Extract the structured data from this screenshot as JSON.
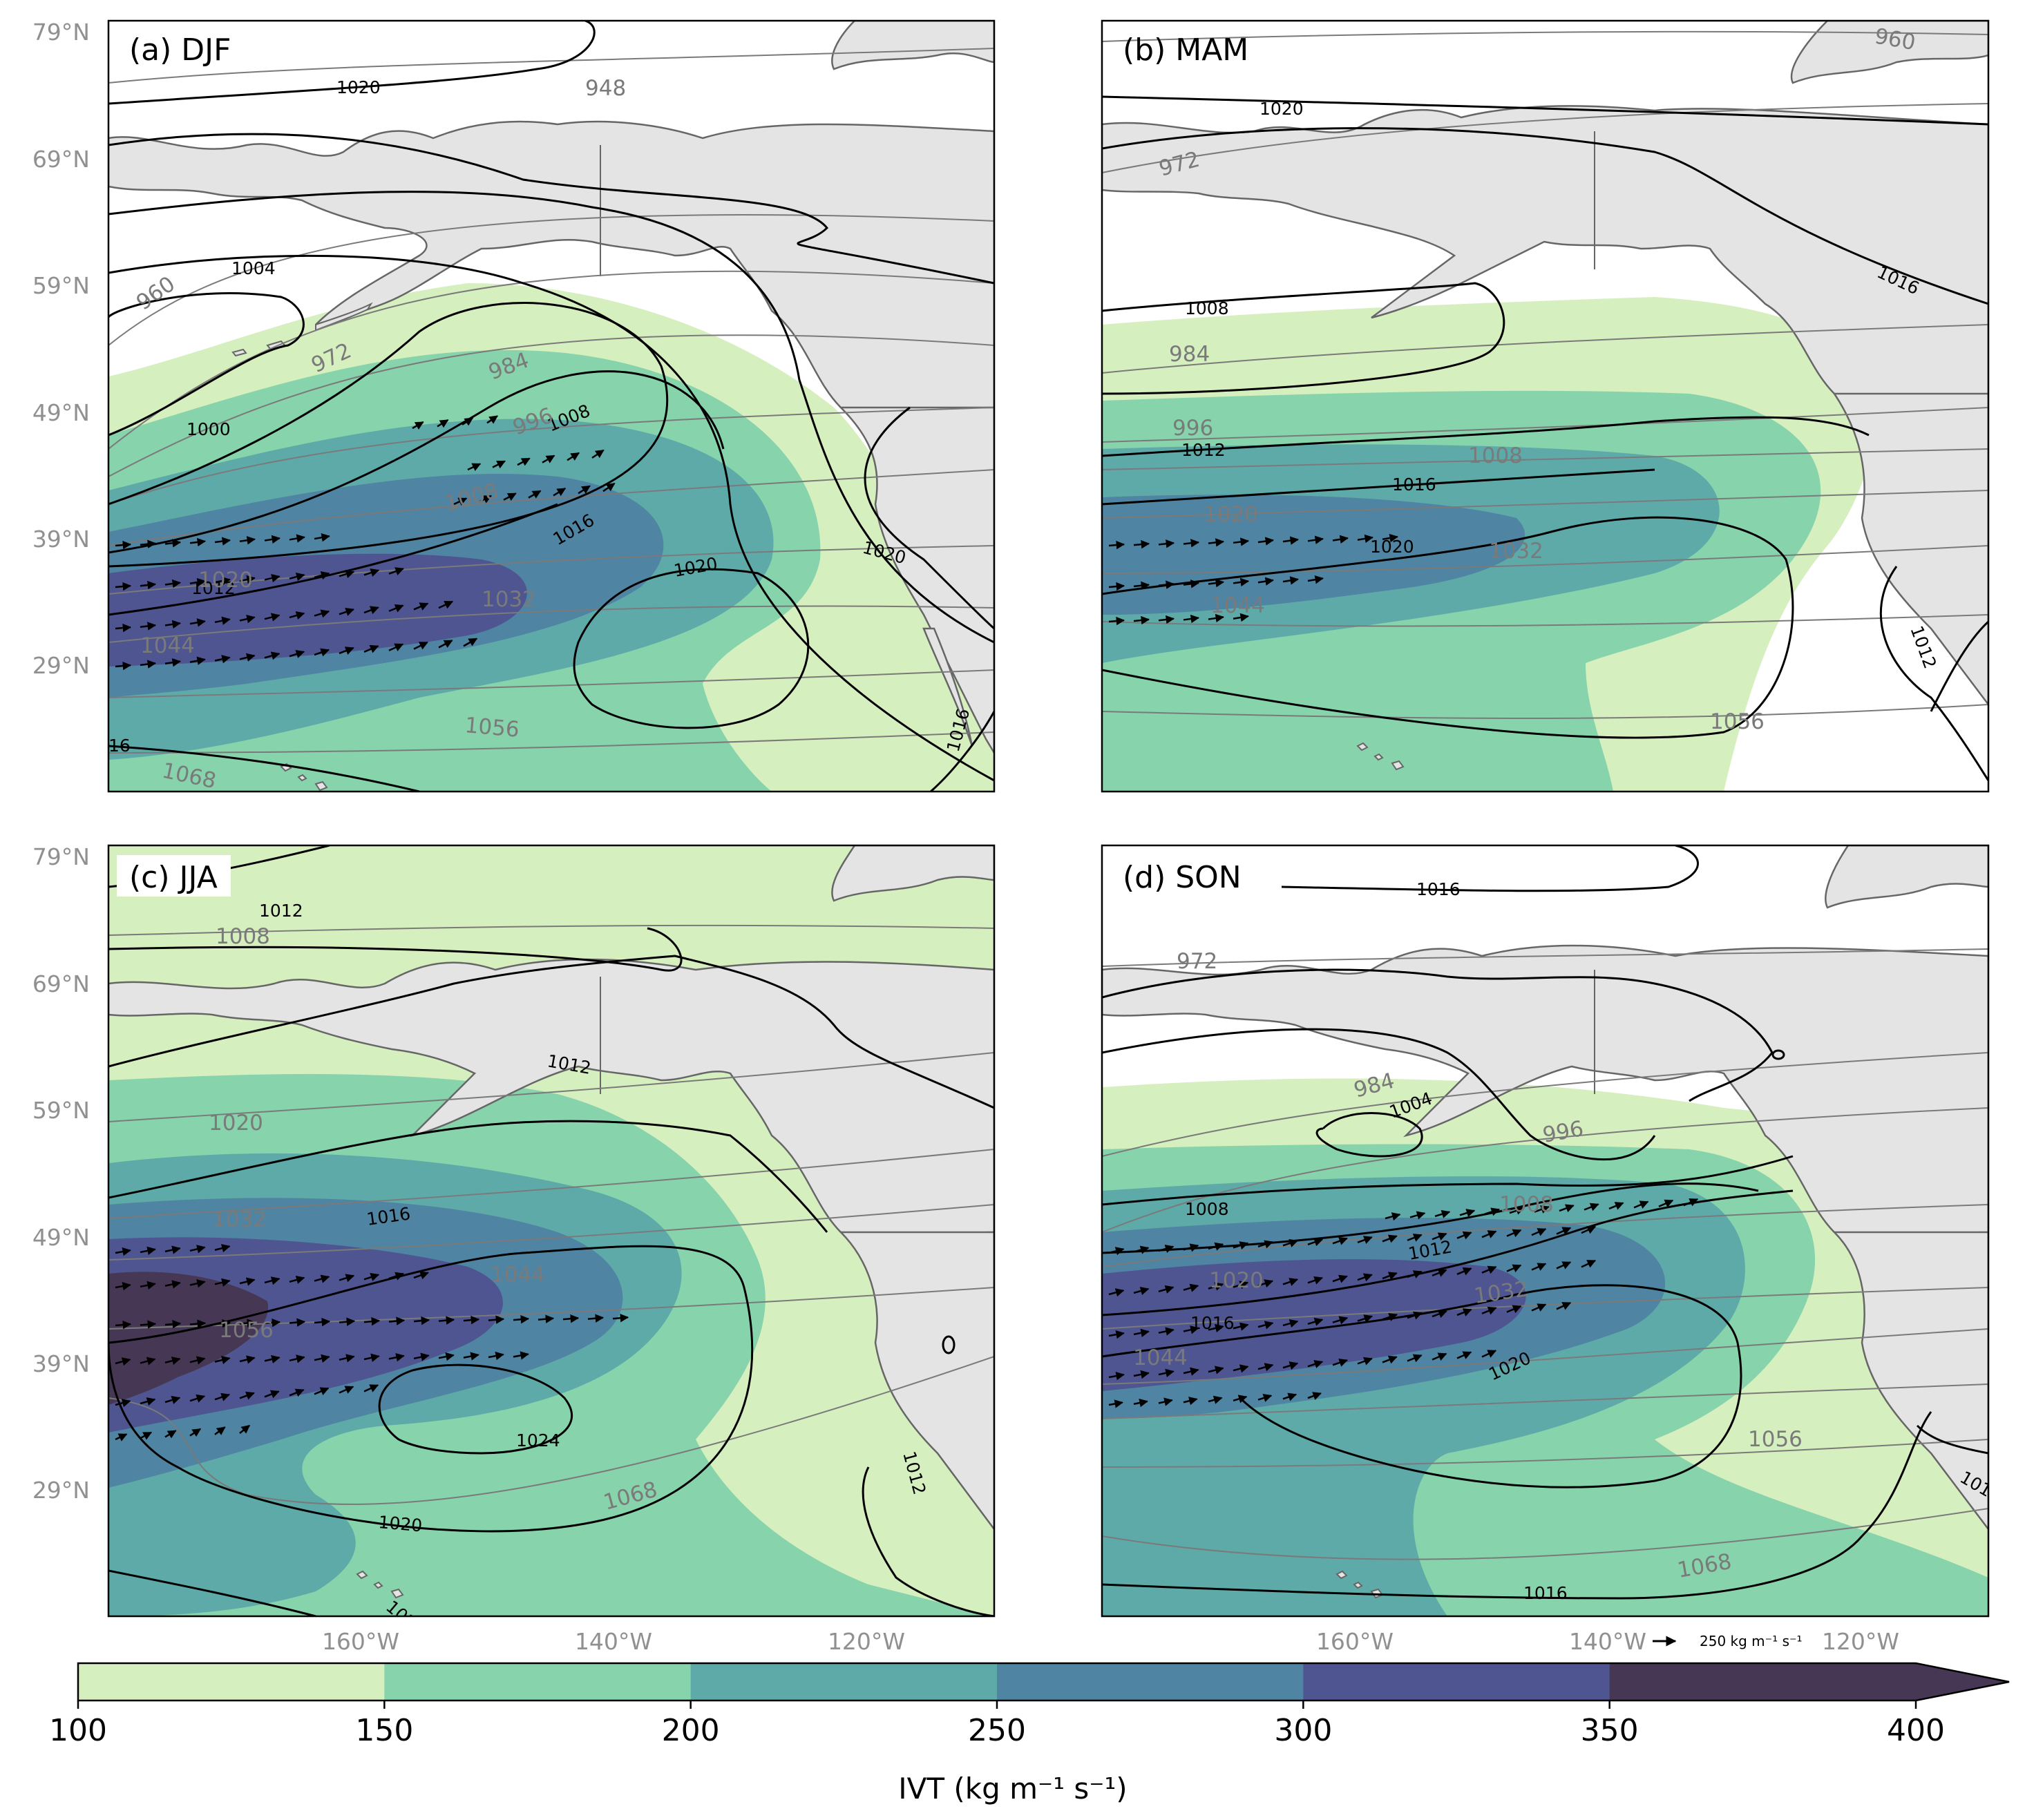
{
  "colors": {
    "ivt_levels": [
      "#d6efbf",
      "#87d3ab",
      "#5eaaa9",
      "#4f84a2",
      "#4e5590",
      "#463854"
    ],
    "land": "#e4e4e4",
    "coast": "#666666",
    "slp_contour": "#000000",
    "z_contour": "#7a7a7a",
    "tick_text": "#909090"
  },
  "axes": {
    "lat_ticks": [
      "79°N",
      "69°N",
      "59°N",
      "49°N",
      "39°N",
      "29°N"
    ],
    "lon_ticks": [
      "160°W",
      "140°W",
      "120°W"
    ]
  },
  "quiver_key": {
    "label": "250 kg m⁻¹ s⁻¹"
  },
  "colorbar": {
    "tick_labels": [
      "100",
      "150",
      "200",
      "250",
      "300",
      "350",
      "400"
    ],
    "label": "IVT (kg m⁻¹ s⁻¹)",
    "extend": "max"
  },
  "panels": [
    {
      "label": "(a) DJF",
      "slp_labels": [
        "1020",
        "1004",
        "1000",
        "1008",
        "1012",
        "1016",
        "1020",
        "1020",
        "1016",
        "16"
      ],
      "z_labels": [
        "948",
        "960",
        "972",
        "984",
        "996",
        "1008",
        "1020",
        "1032",
        "1044",
        "1056",
        "1068"
      ]
    },
    {
      "label": "(b) MAM",
      "slp_labels": [
        "1020",
        "1016",
        "1008",
        "1012",
        "1016",
        "1020",
        "1012"
      ],
      "z_labels": [
        "960",
        "972",
        "984",
        "996",
        "1008",
        "1020",
        "1032",
        "1044",
        "1056"
      ]
    },
    {
      "label": "(c) JJA",
      "slp_labels": [
        "1012",
        "1012",
        "1016",
        "1024",
        "1020",
        "1012",
        "102"
      ],
      "z_labels": [
        "1008",
        "1020",
        "1032",
        "1044",
        "1056",
        "1068"
      ]
    },
    {
      "label": "(d) SON",
      "slp_labels": [
        "1016",
        "1004",
        "1008",
        "1012",
        "1016",
        "1020",
        "1016",
        "101"
      ],
      "z_labels": [
        "972",
        "984",
        "996",
        "1008",
        "1020",
        "1032",
        "1044",
        "1056",
        "1068"
      ]
    }
  ],
  "chart_data": {
    "type": "map",
    "variable": "IVT (kg m⁻¹ s⁻¹)",
    "levels": [
      100,
      150,
      200,
      250,
      300,
      350,
      400
    ],
    "lat_range": [
      20,
      80
    ],
    "lon_range": [
      -180,
      -110
    ],
    "panels": [
      "(a) DJF",
      "(b) MAM",
      "(c) JJA",
      "(d) SON"
    ]
  }
}
